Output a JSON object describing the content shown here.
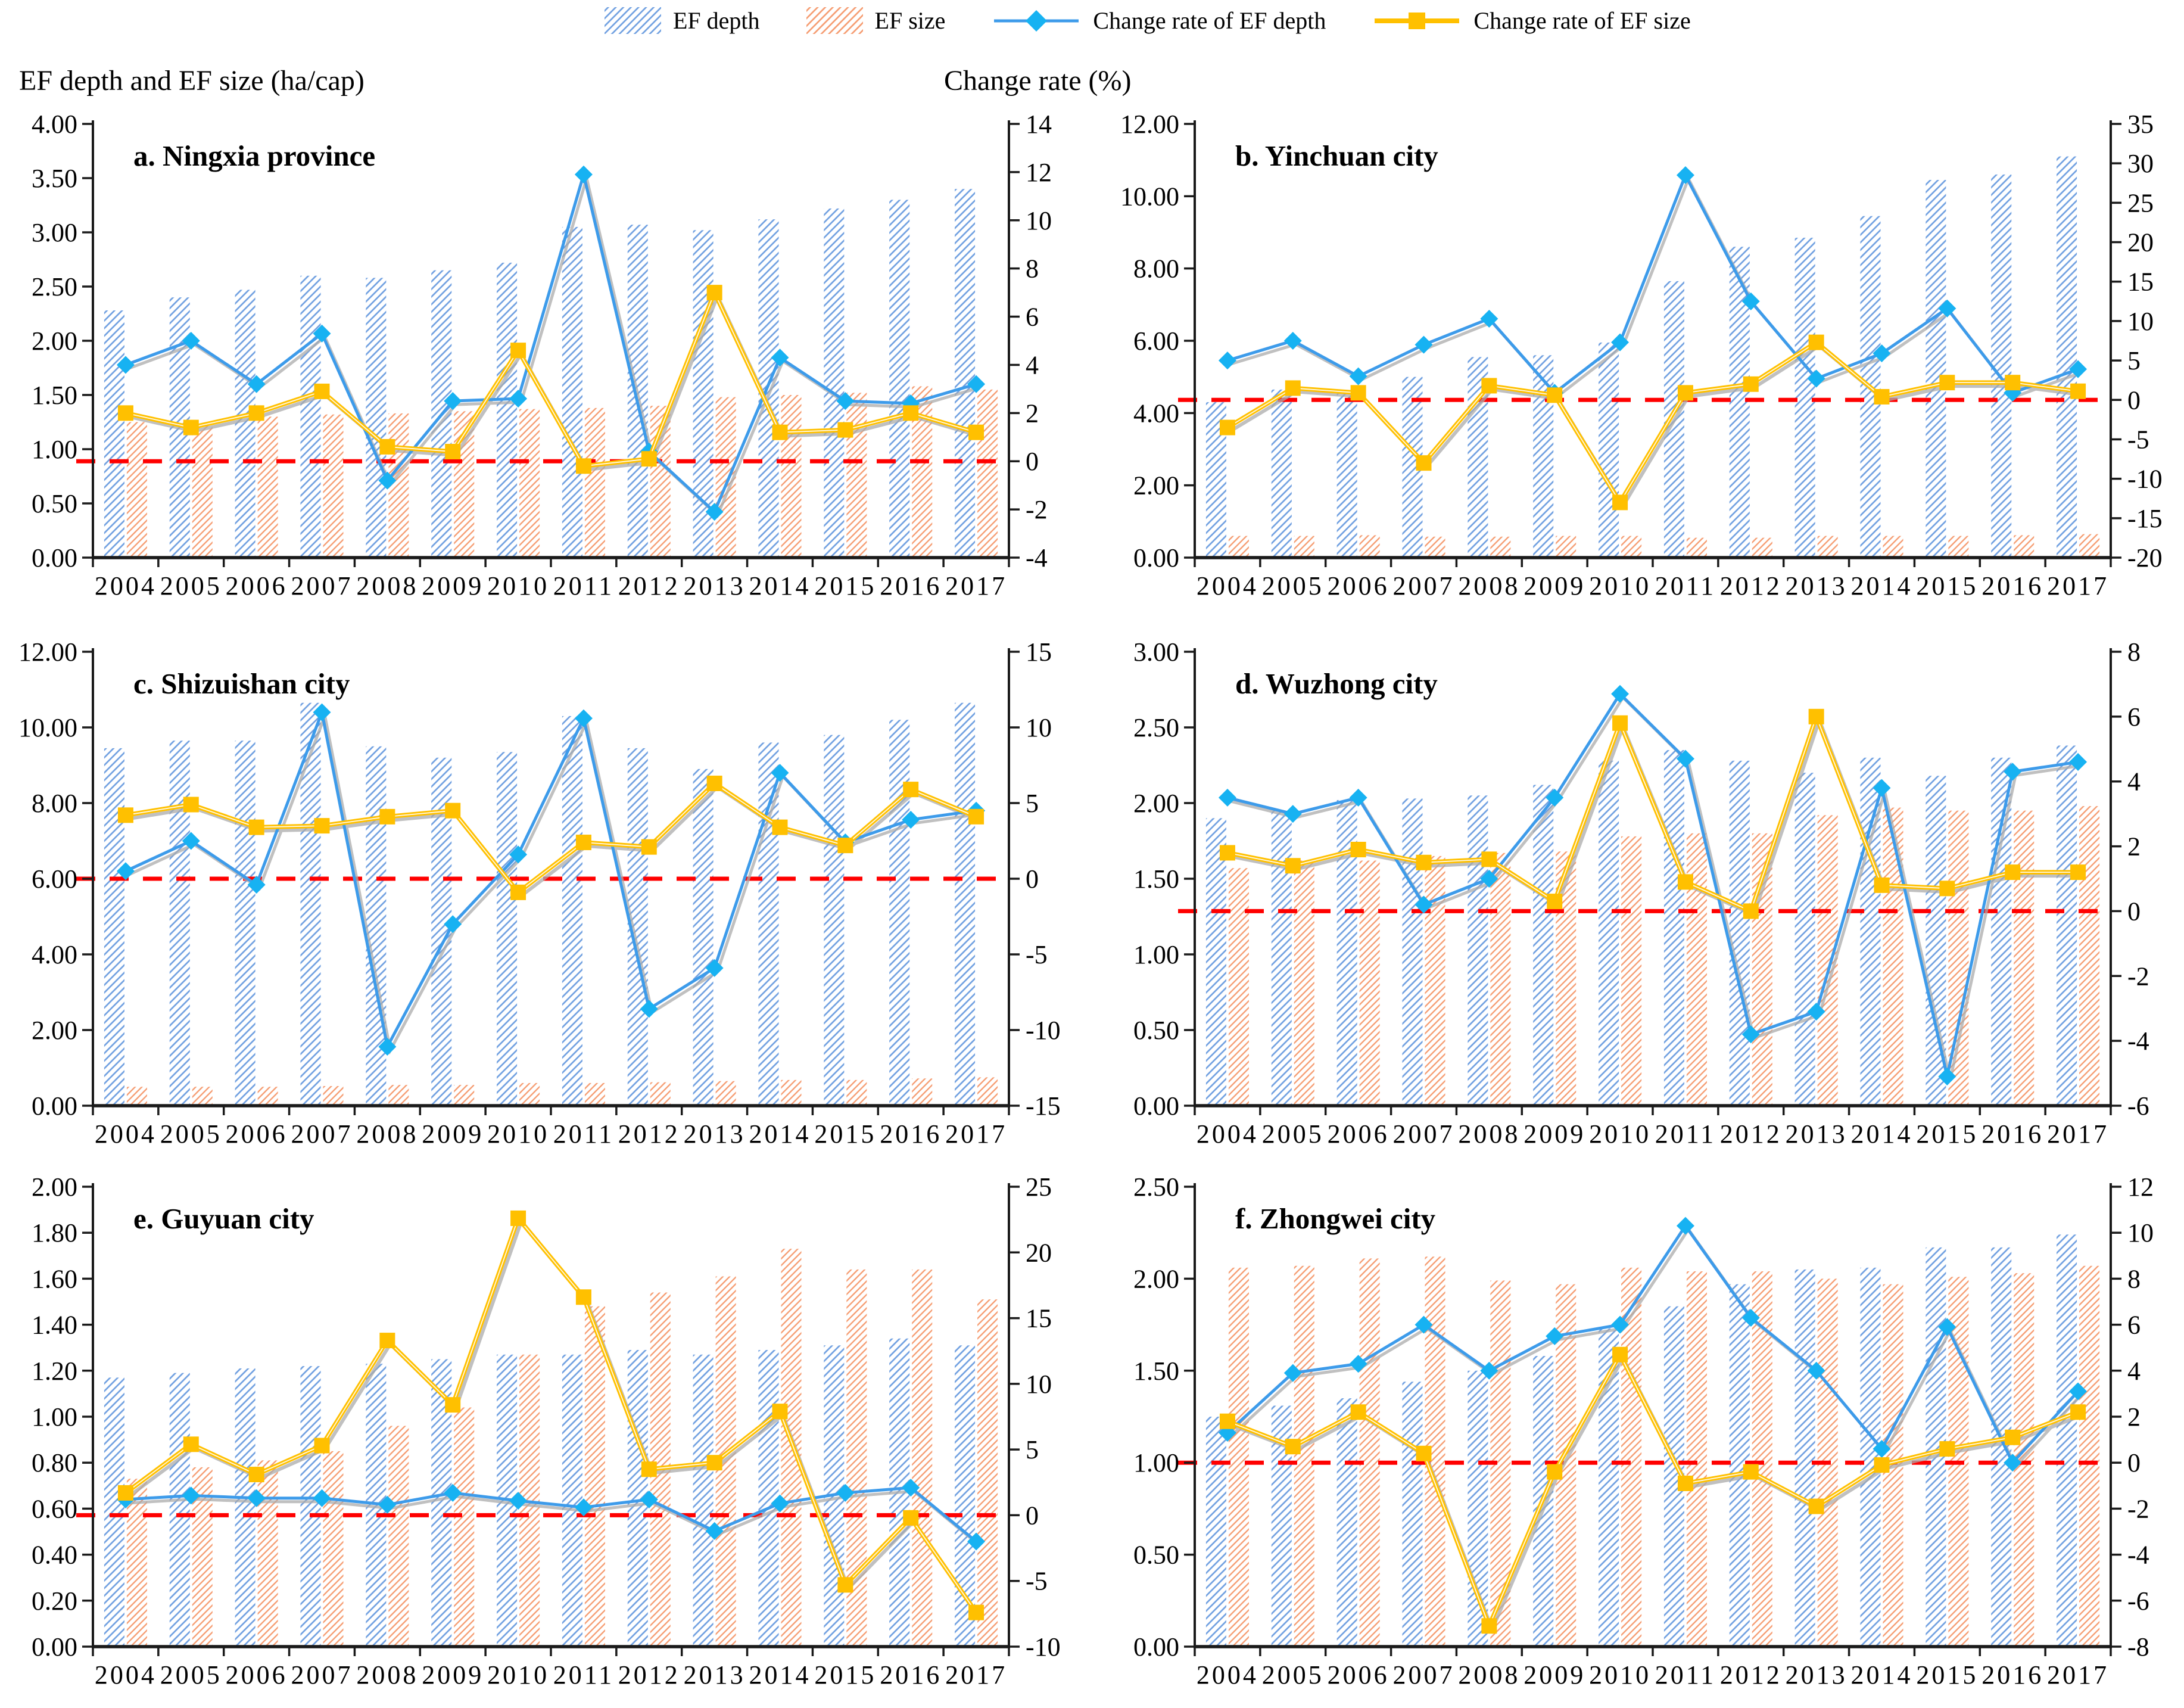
{
  "axis_titles": {
    "left": "EF depth and EF size (ha/cap)",
    "right": "Change rate (%)"
  },
  "legend": {
    "items": [
      {
        "label": "EF depth",
        "type": "hatch-bar",
        "color_key": "bar_depth"
      },
      {
        "label": "EF size",
        "type": "hatch-bar",
        "color_key": "bar_size"
      },
      {
        "label": "Change rate of EF depth",
        "type": "line-diamond",
        "color_key": "line_depth"
      },
      {
        "label": "Change rate of EF size",
        "type": "line-square",
        "color_key": "line_size"
      }
    ]
  },
  "style": {
    "bar_depth": "#6D9EE0",
    "bar_size": "#F59A6E",
    "line_depth": "#3D9BEA",
    "marker_depth": "#17B2F2",
    "line_size": "#FFC000",
    "marker_size": "#FFC000",
    "shadow": "#ABABAB",
    "zero_line": "#FF0000",
    "axis": "#1a1a1a"
  },
  "categories": [
    "2004",
    "2005",
    "2006",
    "2007",
    "2008",
    "2009",
    "2010",
    "2011",
    "2012",
    "2013",
    "2014",
    "2015",
    "2016",
    "2017"
  ],
  "chart_data": [
    {
      "type": "bar-line",
      "title": "a. Ningxia province",
      "left_axis": {
        "min": 0,
        "max": 4,
        "step": 0.5,
        "decimals": 2
      },
      "right_axis": {
        "min": -4,
        "max": 14,
        "step": 2
      },
      "series": [
        {
          "name": "EF depth",
          "axis": "left",
          "kind": "bar",
          "values": [
            2.28,
            2.4,
            2.47,
            2.6,
            2.58,
            2.65,
            2.72,
            3.05,
            3.07,
            3.02,
            3.12,
            3.22,
            3.3,
            3.4
          ]
        },
        {
          "name": "EF size",
          "axis": "left",
          "kind": "bar",
          "values": [
            1.25,
            1.22,
            1.3,
            1.32,
            1.33,
            1.35,
            1.37,
            1.38,
            1.4,
            1.48,
            1.5,
            1.52,
            1.58,
            1.55
          ]
        },
        {
          "name": "Change rate of EF depth",
          "axis": "right",
          "kind": "line",
          "values": [
            4.0,
            5.0,
            3.2,
            5.3,
            -0.8,
            2.5,
            2.6,
            11.9,
            0.4,
            -2.1,
            4.3,
            2.5,
            2.4,
            3.2
          ]
        },
        {
          "name": "Change rate of EF size",
          "axis": "right",
          "kind": "line",
          "values": [
            2.0,
            1.4,
            2.0,
            2.9,
            0.6,
            0.4,
            4.6,
            -0.2,
            0.1,
            7.0,
            1.2,
            1.3,
            2.0,
            1.2
          ]
        }
      ]
    },
    {
      "type": "bar-line",
      "title": "b. Yinchuan city",
      "left_axis": {
        "min": 0,
        "max": 12,
        "step": 2,
        "decimals": 2
      },
      "right_axis": {
        "min": -20,
        "max": 35,
        "step": 5
      },
      "series": [
        {
          "name": "EF depth",
          "axis": "left",
          "kind": "bar",
          "values": [
            4.3,
            4.65,
            4.6,
            5.0,
            5.55,
            5.6,
            5.95,
            7.65,
            8.6,
            8.85,
            9.45,
            10.45,
            10.6,
            11.1
          ]
        },
        {
          "name": "EF size",
          "axis": "left",
          "kind": "bar",
          "values": [
            0.6,
            0.6,
            0.62,
            0.58,
            0.58,
            0.6,
            0.6,
            0.55,
            0.55,
            0.6,
            0.6,
            0.6,
            0.62,
            0.65
          ]
        },
        {
          "name": "Change rate of EF depth",
          "axis": "right",
          "kind": "line",
          "values": [
            5.0,
            7.5,
            3.0,
            7.0,
            10.3,
            0.9,
            7.3,
            28.5,
            12.5,
            2.7,
            5.9,
            11.6,
            0.9,
            3.9
          ]
        },
        {
          "name": "Change rate of EF size",
          "axis": "right",
          "kind": "line",
          "values": [
            -3.5,
            1.5,
            0.9,
            -8.0,
            1.8,
            0.6,
            -13.0,
            0.9,
            2.0,
            7.3,
            0.4,
            2.2,
            2.2,
            1.1
          ]
        }
      ]
    },
    {
      "type": "bar-line",
      "title": "c. Shizuishan city",
      "left_axis": {
        "min": 0,
        "max": 12,
        "step": 2,
        "decimals": 2
      },
      "right_axis": {
        "min": -15,
        "max": 15,
        "step": 5
      },
      "series": [
        {
          "name": "EF depth",
          "axis": "left",
          "kind": "bar",
          "values": [
            9.45,
            9.65,
            9.65,
            10.65,
            9.5,
            9.2,
            9.35,
            10.3,
            9.45,
            8.9,
            9.6,
            9.8,
            10.2,
            10.65
          ]
        },
        {
          "name": "EF size",
          "axis": "left",
          "kind": "bar",
          "values": [
            0.5,
            0.5,
            0.5,
            0.52,
            0.55,
            0.55,
            0.6,
            0.6,
            0.62,
            0.65,
            0.68,
            0.68,
            0.72,
            0.75
          ]
        },
        {
          "name": "Change rate of EF depth",
          "axis": "right",
          "kind": "line",
          "values": [
            0.5,
            2.5,
            -0.4,
            11.0,
            -11.1,
            -3.0,
            1.6,
            10.6,
            -8.6,
            -5.9,
            7.0,
            2.4,
            3.9,
            4.5
          ]
        },
        {
          "name": "Change rate of EF size",
          "axis": "right",
          "kind": "line",
          "values": [
            4.2,
            4.9,
            3.4,
            3.5,
            4.1,
            4.5,
            -0.9,
            2.4,
            2.1,
            6.3,
            3.4,
            2.2,
            5.9,
            4.1
          ]
        }
      ]
    },
    {
      "type": "bar-line",
      "title": "d. Wuzhong city",
      "left_axis": {
        "min": 0,
        "max": 3,
        "step": 0.5,
        "decimals": 2
      },
      "right_axis": {
        "min": -6,
        "max": 8,
        "step": 2
      },
      "series": [
        {
          "name": "EF depth",
          "axis": "left",
          "kind": "bar",
          "values": [
            1.9,
            1.95,
            2.02,
            2.03,
            2.05,
            2.12,
            2.28,
            2.35,
            2.28,
            2.2,
            2.3,
            2.18,
            2.3,
            2.38
          ]
        },
        {
          "name": "EF size",
          "axis": "left",
          "kind": "bar",
          "values": [
            1.57,
            1.62,
            1.62,
            1.65,
            1.67,
            1.68,
            1.78,
            1.8,
            1.8,
            1.92,
            1.97,
            1.95,
            1.95,
            1.98
          ]
        },
        {
          "name": "Change rate of EF depth",
          "axis": "right",
          "kind": "line",
          "values": [
            3.5,
            3.0,
            3.5,
            0.2,
            1.0,
            3.5,
            6.7,
            4.7,
            -3.8,
            -3.1,
            3.8,
            -5.1,
            4.3,
            4.6
          ]
        },
        {
          "name": "Change rate of EF size",
          "axis": "right",
          "kind": "line",
          "values": [
            1.8,
            1.4,
            1.9,
            1.5,
            1.6,
            0.3,
            5.8,
            0.9,
            0.0,
            6.0,
            0.8,
            0.7,
            1.2,
            1.2
          ]
        }
      ]
    },
    {
      "type": "bar-line",
      "title": "e. Guyuan city",
      "left_axis": {
        "min": 0,
        "max": 2,
        "step": 0.2,
        "decimals": 2
      },
      "right_axis": {
        "min": -10,
        "max": 25,
        "step": 5
      },
      "series": [
        {
          "name": "EF depth",
          "axis": "left",
          "kind": "bar",
          "values": [
            1.17,
            1.19,
            1.21,
            1.22,
            1.23,
            1.25,
            1.27,
            1.27,
            1.29,
            1.27,
            1.29,
            1.31,
            1.34,
            1.31
          ]
        },
        {
          "name": "EF size",
          "axis": "left",
          "kind": "bar",
          "values": [
            0.73,
            0.78,
            0.81,
            0.85,
            0.96,
            1.04,
            1.27,
            1.48,
            1.54,
            1.61,
            1.73,
            1.64,
            1.64,
            1.51
          ]
        },
        {
          "name": "Change rate of EF depth",
          "axis": "right",
          "kind": "line",
          "values": [
            1.2,
            1.5,
            1.3,
            1.3,
            0.8,
            1.7,
            1.1,
            0.6,
            1.2,
            -1.2,
            0.9,
            1.7,
            2.1,
            -2.0
          ]
        },
        {
          "name": "Change rate of EF size",
          "axis": "right",
          "kind": "line",
          "values": [
            1.7,
            5.4,
            3.1,
            5.3,
            13.3,
            8.4,
            22.6,
            16.6,
            3.5,
            4.0,
            7.9,
            -5.3,
            -0.2,
            -7.4
          ]
        }
      ]
    },
    {
      "type": "bar-line",
      "title": "f. Zhongwei city",
      "left_axis": {
        "min": 0,
        "max": 2.5,
        "step": 0.5,
        "decimals": 2
      },
      "right_axis": {
        "min": -8,
        "max": 12,
        "step": 2
      },
      "series": [
        {
          "name": "EF depth",
          "axis": "left",
          "kind": "bar",
          "values": [
            1.25,
            1.31,
            1.35,
            1.44,
            1.5,
            1.58,
            1.73,
            1.85,
            1.97,
            2.05,
            2.06,
            2.17,
            2.17,
            2.24
          ]
        },
        {
          "name": "EF size",
          "axis": "left",
          "kind": "bar",
          "values": [
            2.06,
            2.07,
            2.11,
            2.12,
            1.99,
            1.97,
            2.06,
            2.04,
            2.04,
            2.0,
            1.97,
            2.01,
            2.03,
            2.07
          ]
        },
        {
          "name": "Change rate of EF depth",
          "axis": "right",
          "kind": "line",
          "values": [
            1.3,
            3.9,
            4.3,
            6.0,
            4.0,
            5.5,
            6.0,
            10.3,
            6.3,
            4.0,
            0.6,
            5.9,
            0.0,
            3.1
          ]
        },
        {
          "name": "Change rate of EF size",
          "axis": "right",
          "kind": "line",
          "values": [
            1.8,
            0.7,
            2.2,
            0.4,
            -7.1,
            -0.4,
            4.7,
            -0.9,
            -0.4,
            -1.9,
            -0.1,
            0.6,
            1.1,
            2.2
          ]
        }
      ]
    }
  ]
}
